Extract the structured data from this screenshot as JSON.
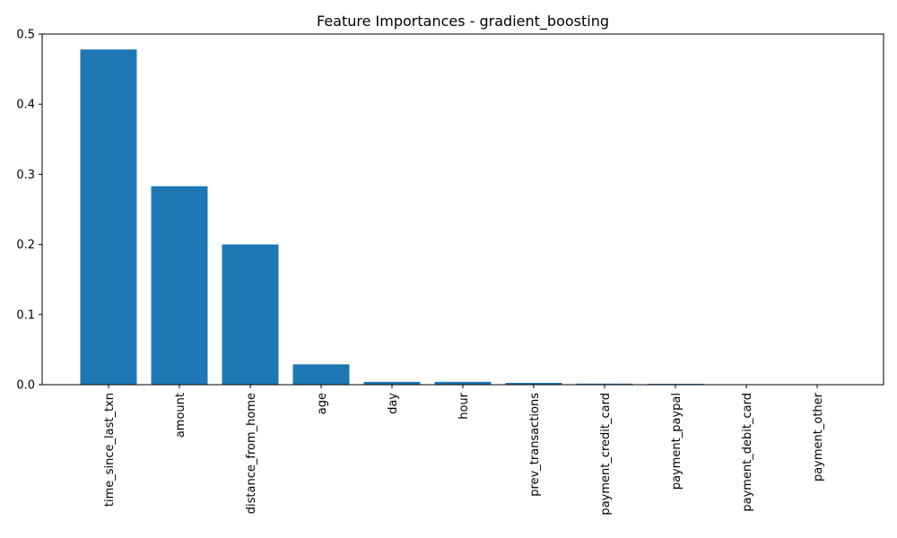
{
  "chart_data": {
    "type": "bar",
    "title": "Feature Importances - gradient_boosting",
    "xlabel": "",
    "ylabel": "",
    "categories": [
      "time_since_last_txn",
      "amount",
      "distance_from_home",
      "age",
      "day",
      "hour",
      "prev_transactions",
      "payment_credit_card",
      "payment_paypal",
      "payment_debit_card",
      "payment_other"
    ],
    "values": [
      0.478,
      0.283,
      0.2,
      0.029,
      0.004,
      0.004,
      0.0025,
      0.0015,
      0.0012,
      0.0004,
      0.0003
    ],
    "ylim": [
      0,
      0.5
    ],
    "yticks": [
      0.0,
      0.1,
      0.2,
      0.3,
      0.4,
      0.5
    ],
    "ytick_labels": [
      "0.0",
      "0.1",
      "0.2",
      "0.3",
      "0.4",
      "0.5"
    ],
    "grid": false,
    "bar_color": "#1f77b4"
  }
}
